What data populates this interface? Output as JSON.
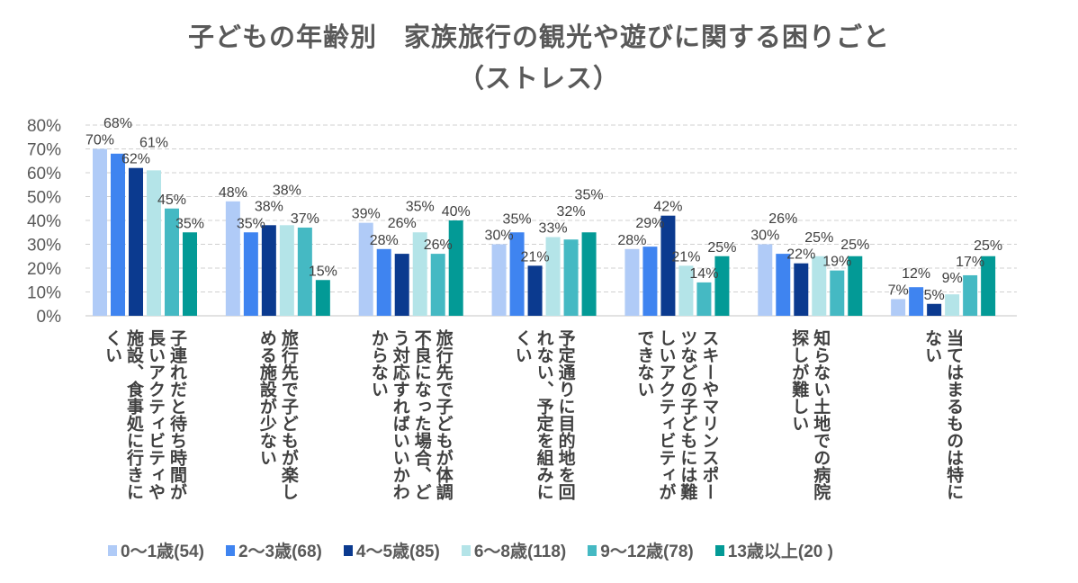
{
  "title_line1": "子どもの年齢別　家族旅行の観光や遊びに関する困りごと",
  "title_line2": "（ストレス）",
  "chart_data": {
    "type": "bar",
    "categories": [
      "子連れだと待ち時間が長いアクティビティや施設、食事処に行きにくい",
      "旅行先で子どもが楽しめる施設が少ない",
      "旅行先で子どもが体調不良になった場合、どう対応すればいいかわからない",
      "予定通りに目的地を回れない、予定を組みにくい",
      "スキーやマリンスポーツなどの子どもには難しいアクティビティができない",
      "知らない土地での病院探しが難しい",
      "当てはまるものは特にない"
    ],
    "series": [
      {
        "name": "0～1歳(54)",
        "color": "#b0cbf7",
        "values": [
          70,
          48,
          39,
          30,
          28,
          30,
          7
        ]
      },
      {
        "name": "2～3歳(68)",
        "color": "#3f84f0",
        "values": [
          68,
          35,
          28,
          35,
          29,
          26,
          12
        ]
      },
      {
        "name": "4～5歳(85)",
        "color": "#0b3a8f",
        "values": [
          62,
          38,
          26,
          21,
          42,
          22,
          5
        ]
      },
      {
        "name": "6～8歳(118)",
        "color": "#b4e4e8",
        "values": [
          61,
          38,
          35,
          33,
          21,
          25,
          9
        ]
      },
      {
        "name": "9～12歳(78)",
        "color": "#45b9c3",
        "values": [
          45,
          37,
          26,
          32,
          14,
          19,
          17
        ]
      },
      {
        "name": "13歳以上(20 )",
        "color": "#039a96",
        "values": [
          35,
          15,
          40,
          35,
          25,
          25,
          25
        ]
      }
    ],
    "yticks": [
      "0%",
      "10%",
      "20%",
      "30%",
      "40%",
      "50%",
      "60%",
      "70%",
      "80%"
    ],
    "ylim": [
      0,
      80
    ],
    "value_suffix": "%",
    "grid": true,
    "legend": "bottom"
  }
}
